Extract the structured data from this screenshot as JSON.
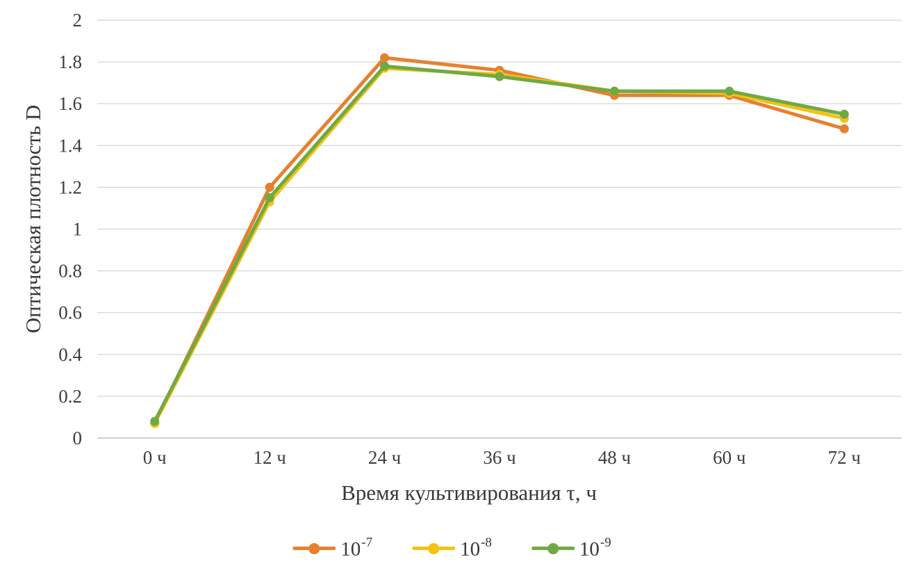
{
  "chart_data": {
    "type": "line",
    "title": "",
    "categories": [
      "0 ч",
      "12 ч",
      "24 ч",
      "36 ч",
      "48 ч",
      "60 ч",
      "72 ч"
    ],
    "series": [
      {
        "name": "10^-7",
        "legend_base": "10",
        "legend_exp": "-7",
        "color": "#E6802E",
        "values": [
          0.07,
          1.2,
          1.82,
          1.76,
          1.64,
          1.64,
          1.48
        ]
      },
      {
        "name": "10^-8",
        "legend_base": "10",
        "legend_exp": "-8",
        "color": "#F3C213",
        "values": [
          0.07,
          1.13,
          1.77,
          1.74,
          1.66,
          1.65,
          1.53
        ]
      },
      {
        "name": "10^-9",
        "legend_base": "10",
        "legend_exp": "-9",
        "color": "#70A943",
        "values": [
          0.08,
          1.15,
          1.78,
          1.73,
          1.66,
          1.66,
          1.55
        ]
      }
    ],
    "xlabel": "Время культивирования τ, ч",
    "ylabel": "Оптическая плотность D",
    "ylim": [
      0,
      2
    ],
    "ytick_step": 0.2,
    "ytick_labels": [
      "0",
      "0.2",
      "0.4",
      "0.6",
      "0.8",
      "1",
      "1.2",
      "1.4",
      "1.6",
      "1.8",
      "2"
    ],
    "grid": true,
    "legend_position": "bottom"
  },
  "colors": {
    "gridline": "#D9D9D9",
    "axis_line": "#BFBFBF",
    "tick_text": "#3D3D3D",
    "title_text": "#383838"
  }
}
